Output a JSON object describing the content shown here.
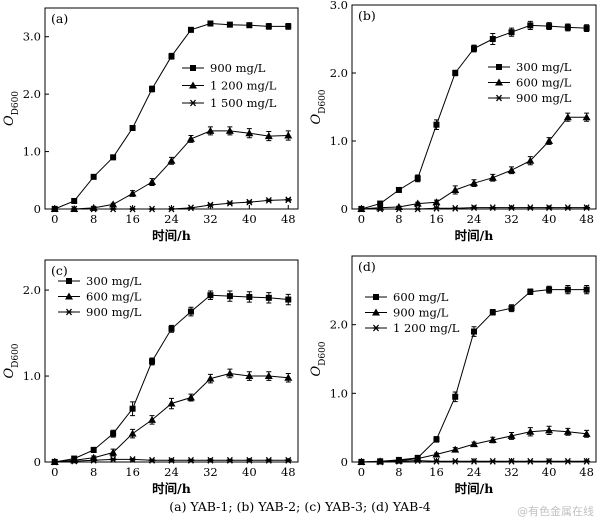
{
  "caption": "(a) YAB-1; (b) YAB-2; (c) YAB-3; (d) YAB-4",
  "watermark": "@有色金属在线",
  "chart_data": [
    {
      "type": "line",
      "panel_label": "(a)",
      "xlabel": "时间/h",
      "ylabel": "O_D600",
      "xlim": [
        -2,
        50
      ],
      "ylim": [
        0,
        3.5
      ],
      "xticks": [
        0,
        8,
        16,
        24,
        32,
        40,
        48
      ],
      "yticks": [
        0,
        1.0,
        2.0,
        3.0
      ],
      "ytick_labels": [
        "0",
        "1.0",
        "2.0",
        "3.0"
      ],
      "legend_position": "top-right",
      "series": [
        {
          "name": "900 mg/L",
          "marker": "square",
          "x": [
            0,
            4,
            8,
            12,
            16,
            20,
            24,
            28,
            32,
            36,
            40,
            44,
            48
          ],
          "y": [
            0,
            0.14,
            0.56,
            0.9,
            1.41,
            2.09,
            2.66,
            3.12,
            3.23,
            3.21,
            3.2,
            3.18,
            3.18
          ],
          "err": [
            0.02,
            0.02,
            0.03,
            0.04,
            0.04,
            0.05,
            0.05,
            0.04,
            0.04,
            0.04,
            0.04,
            0.05,
            0.05
          ]
        },
        {
          "name": "1 200 mg/L",
          "marker": "triangle",
          "x": [
            0,
            4,
            8,
            12,
            16,
            20,
            24,
            28,
            32,
            36,
            40,
            44,
            48
          ],
          "y": [
            0,
            0,
            0.02,
            0.08,
            0.27,
            0.47,
            0.84,
            1.22,
            1.36,
            1.36,
            1.32,
            1.27,
            1.28
          ],
          "err": [
            0.01,
            0.01,
            0.01,
            0.02,
            0.05,
            0.06,
            0.06,
            0.06,
            0.07,
            0.07,
            0.08,
            0.08,
            0.08
          ]
        },
        {
          "name": "1 500 mg/L",
          "marker": "star",
          "x": [
            0,
            4,
            8,
            12,
            16,
            20,
            24,
            28,
            32,
            36,
            40,
            44,
            48
          ],
          "y": [
            0,
            0,
            0,
            0,
            0,
            0,
            0,
            0.02,
            0.07,
            0.1,
            0.12,
            0.15,
            0.16
          ],
          "err": [
            0.01,
            0.01,
            0.01,
            0.01,
            0.01,
            0.01,
            0.01,
            0.01,
            0.02,
            0.02,
            0.02,
            0.02,
            0.02
          ]
        }
      ]
    },
    {
      "type": "line",
      "panel_label": "(b)",
      "xlabel": "时间/h",
      "ylabel": "O_D600",
      "xlim": [
        -2,
        50
      ],
      "ylim": [
        0,
        3.0
      ],
      "xticks": [
        0,
        8,
        16,
        24,
        32,
        40,
        48
      ],
      "yticks": [
        0,
        1.0,
        2.0,
        3.0
      ],
      "ytick_labels": [
        "0",
        "1.0",
        "2.0",
        "3.0"
      ],
      "legend_position": "top-right",
      "series": [
        {
          "name": "300 mg/L",
          "marker": "square",
          "x": [
            0,
            4,
            8,
            12,
            16,
            20,
            24,
            28,
            32,
            36,
            40,
            44,
            48
          ],
          "y": [
            0,
            0.08,
            0.28,
            0.45,
            1.24,
            2.0,
            2.36,
            2.5,
            2.6,
            2.7,
            2.69,
            2.67,
            2.66
          ],
          "err": [
            0.01,
            0.02,
            0.03,
            0.05,
            0.07,
            0.04,
            0.05,
            0.08,
            0.06,
            0.06,
            0.05,
            0.05,
            0.05
          ]
        },
        {
          "name": "600 mg/L",
          "marker": "triangle",
          "x": [
            0,
            4,
            8,
            12,
            16,
            20,
            24,
            28,
            32,
            36,
            40,
            44,
            48
          ],
          "y": [
            0,
            0.02,
            0.03,
            0.08,
            0.1,
            0.28,
            0.38,
            0.46,
            0.57,
            0.71,
            1.0,
            1.35,
            1.35
          ],
          "err": [
            0.01,
            0.01,
            0.01,
            0.02,
            0.03,
            0.06,
            0.05,
            0.05,
            0.05,
            0.06,
            0.05,
            0.06,
            0.06
          ]
        },
        {
          "name": "900 mg/L",
          "marker": "star",
          "x": [
            0,
            4,
            8,
            12,
            16,
            20,
            24,
            28,
            32,
            36,
            40,
            44,
            48
          ],
          "y": [
            0,
            0,
            0,
            0,
            0.01,
            0.01,
            0.02,
            0.02,
            0.02,
            0.02,
            0.02,
            0.02,
            0.02
          ],
          "err": [
            0.01,
            0.01,
            0.01,
            0.01,
            0.01,
            0.01,
            0.01,
            0.01,
            0.01,
            0.01,
            0.01,
            0.01,
            0.01
          ]
        }
      ]
    },
    {
      "type": "line",
      "panel_label": "(c)",
      "xlabel": "时间/h",
      "ylabel": "O_D600",
      "xlim": [
        -2,
        50
      ],
      "ylim": [
        0,
        2.35
      ],
      "xticks": [
        0,
        8,
        16,
        24,
        32,
        40,
        48
      ],
      "yticks": [
        0,
        1.0,
        2.0
      ],
      "ytick_labels": [
        "0",
        "1.0",
        "2.0"
      ],
      "legend_position": "top-left",
      "series": [
        {
          "name": "300 mg/L",
          "marker": "square",
          "x": [
            0,
            4,
            8,
            12,
            16,
            20,
            24,
            28,
            32,
            36,
            40,
            44,
            48
          ],
          "y": [
            0,
            0.04,
            0.14,
            0.33,
            0.62,
            1.17,
            1.55,
            1.75,
            1.94,
            1.93,
            1.92,
            1.91,
            1.89
          ],
          "err": [
            0.01,
            0.02,
            0.03,
            0.04,
            0.08,
            0.04,
            0.04,
            0.05,
            0.05,
            0.06,
            0.06,
            0.06,
            0.06
          ]
        },
        {
          "name": "600 mg/L",
          "marker": "triangle",
          "x": [
            0,
            4,
            8,
            12,
            16,
            20,
            24,
            28,
            32,
            36,
            40,
            44,
            48
          ],
          "y": [
            0,
            0.02,
            0.05,
            0.11,
            0.33,
            0.49,
            0.68,
            0.75,
            0.97,
            1.03,
            1.0,
            1.0,
            0.98
          ],
          "err": [
            0.01,
            0.01,
            0.02,
            0.04,
            0.05,
            0.05,
            0.06,
            0.04,
            0.05,
            0.05,
            0.05,
            0.05,
            0.05
          ]
        },
        {
          "name": "900 mg/L",
          "marker": "star",
          "x": [
            0,
            4,
            8,
            12,
            16,
            20,
            24,
            28,
            32,
            36,
            40,
            44,
            48
          ],
          "y": [
            0,
            0.01,
            0.02,
            0.03,
            0.03,
            0.02,
            0.02,
            0.02,
            0.02,
            0.02,
            0.02,
            0.02,
            0.02
          ],
          "err": [
            0.01,
            0.01,
            0.01,
            0.01,
            0.01,
            0.01,
            0.01,
            0.01,
            0.01,
            0.01,
            0.01,
            0.01,
            0.01
          ]
        }
      ]
    },
    {
      "type": "line",
      "panel_label": "(d)",
      "xlabel": "时间/h",
      "ylabel": "O_D600",
      "xlim": [
        -2,
        50
      ],
      "ylim": [
        0,
        3.0
      ],
      "xticks": [
        0,
        8,
        16,
        24,
        32,
        40,
        48
      ],
      "yticks": [
        0,
        1.0,
        2.0
      ],
      "ytick_labels": [
        "0",
        "1.0",
        "2.0"
      ],
      "legend_position": "top-left",
      "series": [
        {
          "name": "600 mg/L",
          "marker": "square",
          "x": [
            0,
            4,
            8,
            12,
            16,
            20,
            24,
            28,
            32,
            36,
            40,
            44,
            48
          ],
          "y": [
            0,
            0.01,
            0.03,
            0.06,
            0.33,
            0.95,
            1.9,
            2.18,
            2.24,
            2.48,
            2.51,
            2.51,
            2.51
          ],
          "err": [
            0.01,
            0.01,
            0.01,
            0.02,
            0.04,
            0.07,
            0.07,
            0.04,
            0.05,
            0.04,
            0.05,
            0.06,
            0.06
          ]
        },
        {
          "name": "900 mg/L",
          "marker": "triangle",
          "x": [
            0,
            4,
            8,
            12,
            16,
            20,
            24,
            28,
            32,
            36,
            40,
            44,
            48
          ],
          "y": [
            0,
            0.01,
            0.02,
            0.05,
            0.11,
            0.18,
            0.26,
            0.32,
            0.38,
            0.44,
            0.46,
            0.44,
            0.41
          ],
          "err": [
            0.01,
            0.01,
            0.01,
            0.01,
            0.02,
            0.03,
            0.03,
            0.04,
            0.05,
            0.06,
            0.06,
            0.05,
            0.05
          ]
        },
        {
          "name": "1 200 mg/L",
          "marker": "star",
          "x": [
            0,
            4,
            8,
            12,
            16,
            20,
            24,
            28,
            32,
            36,
            40,
            44,
            48
          ],
          "y": [
            0,
            0,
            0.01,
            0.02,
            0.01,
            0.01,
            0.01,
            0.01,
            0.01,
            0.01,
            0.01,
            0.01,
            0.01
          ],
          "err": [
            0.01,
            0.01,
            0.01,
            0.01,
            0.01,
            0.01,
            0.01,
            0.01,
            0.01,
            0.01,
            0.01,
            0.01,
            0.01
          ]
        }
      ]
    }
  ]
}
